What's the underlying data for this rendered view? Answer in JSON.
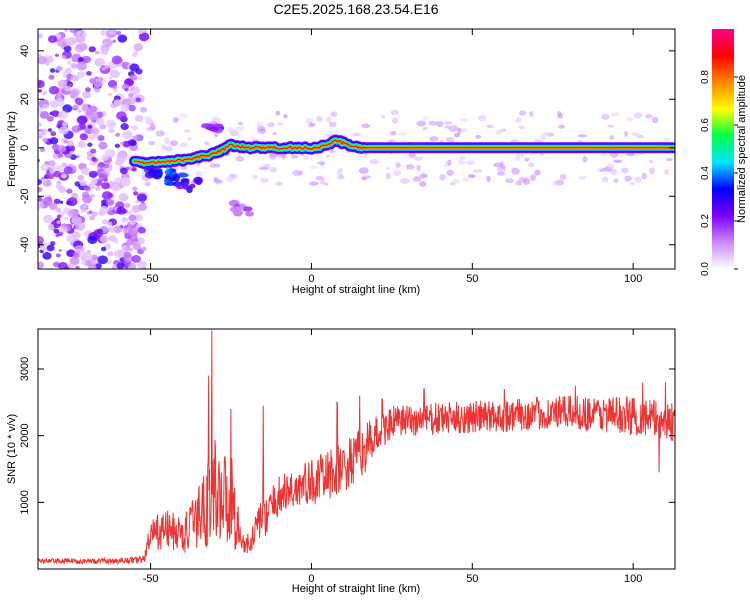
{
  "title": "C2E5.2025.168.23.54.E16",
  "chart_data": [
    {
      "type": "heatmap",
      "xlabel": "Height of straight line (km)",
      "ylabel": "Frequency (Hz)",
      "xlim": [
        -85,
        113
      ],
      "ylim": [
        -50,
        49
      ],
      "xticks": [
        -50,
        0,
        50,
        100
      ],
      "yticks": [
        -40,
        -20,
        0,
        20,
        40
      ],
      "colorbar": {
        "label": "Normalized spectral amplitude",
        "range": [
          0,
          1
        ],
        "ticks": [
          0.0,
          0.2,
          0.4,
          0.6,
          0.8
        ],
        "tick_labels": [
          "0.0",
          "0.2",
          "0.4",
          "0.6",
          "0.8"
        ],
        "colors": [
          "#ffffff",
          "#cc88ff",
          "#7a00ff",
          "#0000ff",
          "#00e5ff",
          "#00ff44",
          "#ffff00",
          "#ff8800",
          "#ff0000",
          "#ff0088"
        ]
      },
      "noise_region_x": [
        -85,
        -52
      ],
      "ridge": [
        {
          "x": -55,
          "y": -6
        },
        {
          "x": -50,
          "y": -6
        },
        {
          "x": -45,
          "y": -6
        },
        {
          "x": -40,
          "y": -5
        },
        {
          "x": -36,
          "y": -4
        },
        {
          "x": -32,
          "y": -3
        },
        {
          "x": -28,
          "y": -1
        },
        {
          "x": -25,
          "y": 1
        },
        {
          "x": -20,
          "y": 0
        },
        {
          "x": -15,
          "y": 0
        },
        {
          "x": -10,
          "y": 0
        },
        {
          "x": 0,
          "y": 0
        },
        {
          "x": 5,
          "y": 1
        },
        {
          "x": 8,
          "y": 3
        },
        {
          "x": 12,
          "y": 1
        },
        {
          "x": 16,
          "y": 0
        },
        {
          "x": 40,
          "y": 0
        },
        {
          "x": 70,
          "y": 0
        },
        {
          "x": 100,
          "y": 0
        },
        {
          "x": 113,
          "y": 0
        }
      ],
      "blobs": [
        {
          "x": -45,
          "y": -11,
          "v": 0.35
        },
        {
          "x": -42,
          "y": -13,
          "v": 0.3
        },
        {
          "x": -38,
          "y": -15,
          "v": 0.25
        },
        {
          "x": -31,
          "y": 8,
          "v": 0.2
        },
        {
          "x": -22,
          "y": -25,
          "v": 0.15
        },
        {
          "x": -48,
          "y": -9,
          "v": 0.3
        }
      ]
    },
    {
      "type": "line",
      "xlabel": "Height of straight line (km)",
      "ylabel": "SNR (10 * v/v)",
      "xlim": [
        -85,
        113
      ],
      "ylim": [
        0,
        3600
      ],
      "xticks": [
        -50,
        0,
        50,
        100
      ],
      "yticks": [
        1000,
        2000,
        3000
      ],
      "series_color": "#ee3333",
      "envelope": [
        {
          "x": -85,
          "v": 120,
          "a": 40
        },
        {
          "x": -60,
          "v": 120,
          "a": 40
        },
        {
          "x": -52,
          "v": 150,
          "a": 60
        },
        {
          "x": -50,
          "v": 500,
          "a": 250
        },
        {
          "x": -45,
          "v": 600,
          "a": 300
        },
        {
          "x": -40,
          "v": 500,
          "a": 300
        },
        {
          "x": -36,
          "v": 700,
          "a": 400
        },
        {
          "x": -33,
          "v": 1000,
          "a": 700
        },
        {
          "x": -30,
          "v": 1200,
          "a": 800
        },
        {
          "x": -27,
          "v": 1100,
          "a": 700
        },
        {
          "x": -24,
          "v": 1000,
          "a": 700
        },
        {
          "x": -22,
          "v": 400,
          "a": 200
        },
        {
          "x": -19,
          "v": 350,
          "a": 150
        },
        {
          "x": -17,
          "v": 700,
          "a": 250
        },
        {
          "x": -14,
          "v": 800,
          "a": 300
        },
        {
          "x": -10,
          "v": 1100,
          "a": 300
        },
        {
          "x": 0,
          "v": 1300,
          "a": 350
        },
        {
          "x": 10,
          "v": 1500,
          "a": 400
        },
        {
          "x": 15,
          "v": 1700,
          "a": 400
        },
        {
          "x": 20,
          "v": 2000,
          "a": 300
        },
        {
          "x": 25,
          "v": 2200,
          "a": 250
        },
        {
          "x": 40,
          "v": 2250,
          "a": 250
        },
        {
          "x": 60,
          "v": 2300,
          "a": 250
        },
        {
          "x": 80,
          "v": 2350,
          "a": 250
        },
        {
          "x": 100,
          "v": 2300,
          "a": 300
        },
        {
          "x": 113,
          "v": 2200,
          "a": 300
        }
      ],
      "spikes": [
        {
          "x": -31,
          "v": 3580
        },
        {
          "x": -25,
          "v": 2400
        },
        {
          "x": -15,
          "v": 2450
        },
        {
          "x": -32,
          "v": 2900
        },
        {
          "x": 8,
          "v": 2500
        },
        {
          "x": 15,
          "v": 2600
        },
        {
          "x": 22,
          "v": 2550
        },
        {
          "x": 35,
          "v": 2700
        },
        {
          "x": 60,
          "v": 2700
        },
        {
          "x": 82,
          "v": 2750
        },
        {
          "x": 103,
          "v": 2800
        },
        {
          "x": 110,
          "v": 2800
        },
        {
          "x": 108,
          "v": 1450
        }
      ]
    }
  ]
}
